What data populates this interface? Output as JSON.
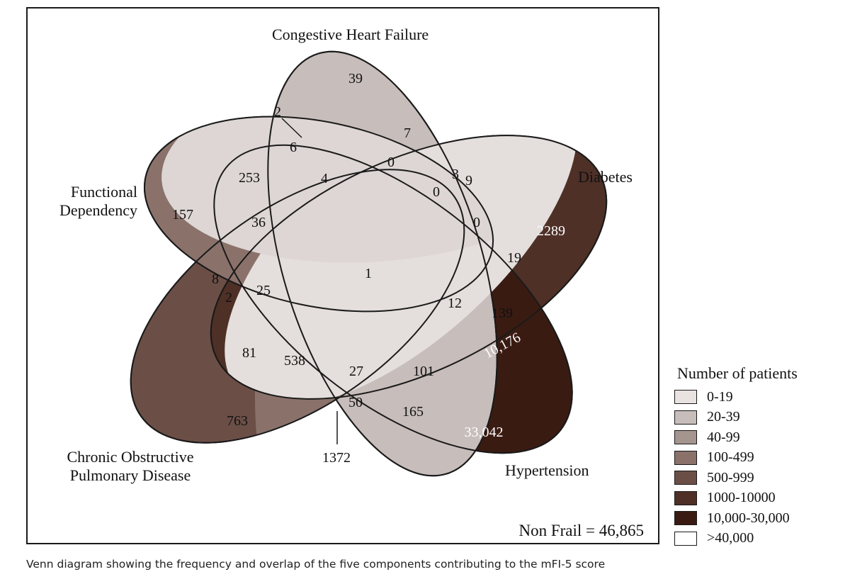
{
  "diagram": {
    "type": "venn-5-set",
    "sets": {
      "chf": {
        "label": "Congestive Heart Failure"
      },
      "diabetes": {
        "label": "Diabetes"
      },
      "fd": {
        "label_line1": "Functional",
        "label_line2": "Dependency"
      },
      "copd": {
        "label_line1": "Chronic Obstructive",
        "label_line2": "Pulmonary Disease"
      },
      "htn": {
        "label": "Hypertension"
      }
    },
    "counts": {
      "chf_only": "39",
      "a_7": "7",
      "a_0_top": "0",
      "a_3": "3",
      "a_9": "9",
      "a_2_top": "2",
      "a_6": "6",
      "fd_253": "253",
      "a_4": "4",
      "a_0_mid": "0",
      "a_0_right": "0",
      "diabetes_only": "2289",
      "fd_only": "157",
      "a_36": "36",
      "a_19": "19",
      "center": "1",
      "a_8": "8",
      "a_2_left": "2",
      "a_25": "25",
      "a_12": "12",
      "a_139": "139",
      "diabetes_htn": "10,176",
      "a_81": "81",
      "a_538": "538",
      "a_27": "27",
      "a_101": "101",
      "a_50": "50",
      "a_165": "165",
      "copd_only": "763",
      "htn_only": "33,042",
      "copd_htn": "1372"
    },
    "non_frail": "Non Frail = 46,865"
  },
  "legend": {
    "title": "Number of patients",
    "items": [
      {
        "label": "0-19",
        "color": "#e8e2e1"
      },
      {
        "label": "20-39",
        "color": "#c7bdba"
      },
      {
        "label": "40-99",
        "color": "#a5958f"
      },
      {
        "label": "100-499",
        "color": "#8a726b"
      },
      {
        "label": "500-999",
        "color": "#6b4f47"
      },
      {
        "label": "1000-10000",
        "color": "#4e3027"
      },
      {
        "label": "10,000-30,000",
        "color": "#3a1b12"
      },
      {
        "label": ">40,000",
        "color": "#ffffff"
      }
    ]
  },
  "caption": "Venn diagram showing the frequency and overlap of the five components contributing to the mFI-5 score"
}
